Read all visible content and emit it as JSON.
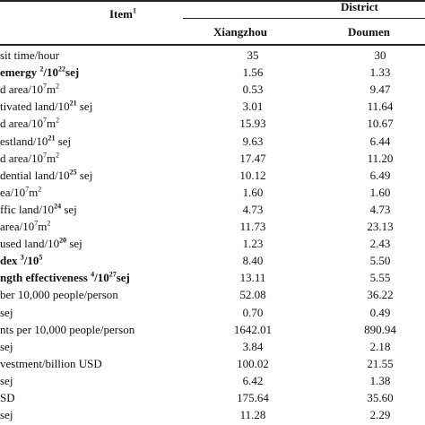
{
  "header": {
    "item": "Item",
    "item_sup": "1",
    "district": "District",
    "col1": "Xiangzhou",
    "col2": "Doumen"
  },
  "rows": [
    {
      "label": [
        [
          "sit time/hour",
          ""
        ]
      ],
      "bold": false,
      "v1": "35",
      "v2": "30"
    },
    {
      "label": [
        [
          "emergy ",
          ""
        ],
        [
          "2",
          "sup"
        ],
        [
          "/10",
          ""
        ],
        [
          "22",
          "sup"
        ],
        [
          "sej",
          ""
        ]
      ],
      "bold": true,
      "v1": "1.56",
      "v2": "1.33"
    },
    {
      "label": [
        [
          "d area/10",
          ""
        ],
        [
          "7",
          "sup"
        ],
        [
          "m",
          ""
        ],
        [
          "2",
          "sup"
        ]
      ],
      "bold": false,
      "v1": "0.53",
      "v2": "9.47"
    },
    {
      "label": [
        [
          "tivated land/10",
          ""
        ],
        [
          "21",
          "supb"
        ],
        [
          " sej",
          ""
        ]
      ],
      "bold": false,
      "v1": "3.01",
      "v2": "11.64"
    },
    {
      "label": [
        [
          "d area/10",
          ""
        ],
        [
          "7",
          "sup"
        ],
        [
          "m",
          ""
        ],
        [
          "2",
          "sup"
        ]
      ],
      "bold": false,
      "v1": "15.93",
      "v2": "10.67"
    },
    {
      "label": [
        [
          "estland/10",
          ""
        ],
        [
          "21",
          "supb"
        ],
        [
          " sej",
          ""
        ]
      ],
      "bold": false,
      "v1": "9.63",
      "v2": "6.44"
    },
    {
      "label": [
        [
          "d area/10",
          ""
        ],
        [
          "7",
          "sup"
        ],
        [
          "m",
          ""
        ],
        [
          "2",
          "sup"
        ]
      ],
      "bold": false,
      "v1": "17.47",
      "v2": "11.20"
    },
    {
      "label": [
        [
          "dential land/10",
          ""
        ],
        [
          "25",
          "supb"
        ],
        [
          " sej",
          ""
        ]
      ],
      "bold": false,
      "v1": "10.12",
      "v2": "6.49"
    },
    {
      "label": [
        [
          "ea/10",
          ""
        ],
        [
          "7",
          "sup"
        ],
        [
          "m",
          ""
        ],
        [
          "2",
          "sup"
        ]
      ],
      "bold": false,
      "v1": "1.60",
      "v2": "1.60"
    },
    {
      "label": [
        [
          "ffic land/10",
          ""
        ],
        [
          "24",
          "supb"
        ],
        [
          " sej",
          ""
        ]
      ],
      "bold": false,
      "v1": "4.73",
      "v2": "4.73"
    },
    {
      "label": [
        [
          "area/10",
          ""
        ],
        [
          "7",
          "sup"
        ],
        [
          "m",
          ""
        ],
        [
          "2",
          "sup"
        ]
      ],
      "bold": false,
      "v1": "11.73",
      "v2": "23.13"
    },
    {
      "label": [
        [
          "used land/10",
          ""
        ],
        [
          "20",
          "supb"
        ],
        [
          " sej",
          ""
        ]
      ],
      "bold": false,
      "v1": "1.23",
      "v2": "2.43"
    },
    {
      "label": [
        [
          "dex ",
          ""
        ],
        [
          "3",
          "sup"
        ],
        [
          "/10",
          ""
        ],
        [
          "5",
          "sup"
        ]
      ],
      "bold": true,
      "v1": "8.40",
      "v2": "5.50"
    },
    {
      "label": [
        [
          "ngth effectiveness ",
          ""
        ],
        [
          "4",
          "sup"
        ],
        [
          "/10",
          ""
        ],
        [
          "27",
          "sup"
        ],
        [
          "sej",
          ""
        ]
      ],
      "bold": true,
      "v1": "13.11",
      "v2": "5.55"
    },
    {
      "label": [
        [
          "ber 10,000 people/person",
          ""
        ]
      ],
      "bold": false,
      "v1": "52.08",
      "v2": "36.22"
    },
    {
      "label": [
        [
          "sej",
          ""
        ]
      ],
      "bold": false,
      "v1": "0.70",
      "v2": "0.49"
    },
    {
      "label": [
        [
          "nts per 10,000 people/person",
          ""
        ]
      ],
      "bold": false,
      "v1": "1642.01",
      "v2": "890.94"
    },
    {
      "label": [
        [
          "sej",
          ""
        ]
      ],
      "bold": false,
      "v1": "3.84",
      "v2": "2.18"
    },
    {
      "label": [
        [
          "vestment/billion USD",
          ""
        ]
      ],
      "bold": false,
      "v1": "100.02",
      "v2": "21.55"
    },
    {
      "label": [
        [
          "sej",
          ""
        ]
      ],
      "bold": false,
      "v1": "6.42",
      "v2": "1.38"
    },
    {
      "label": [
        [
          "SD",
          ""
        ]
      ],
      "bold": false,
      "v1": "175.64",
      "v2": "35.60"
    },
    {
      "label": [
        [
          "sej",
          ""
        ]
      ],
      "bold": false,
      "v1": "11.28",
      "v2": "2.29"
    }
  ]
}
